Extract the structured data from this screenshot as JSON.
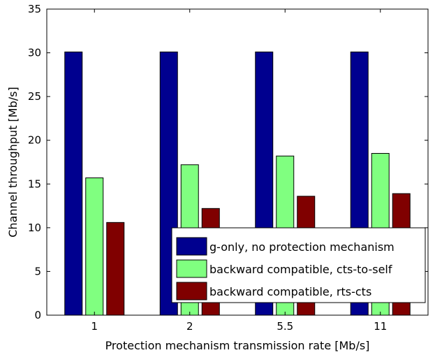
{
  "chart_data": {
    "type": "bar",
    "xlabel": "Protection mechanism transmission rate [Mb/s]",
    "ylabel": "Channel throughput [Mb/s]",
    "categories": [
      "1",
      "2",
      "5.5",
      "11"
    ],
    "ylim": [
      0,
      35
    ],
    "yticks": [
      "0",
      "5",
      "10",
      "15",
      "20",
      "25",
      "30",
      "35"
    ],
    "grid": false,
    "legend_position": "lower-right",
    "series": [
      {
        "name": "g-only, no protection mechanism",
        "color": "#00008f",
        "values": [
          30.1,
          30.1,
          30.1,
          30.1
        ]
      },
      {
        "name": "backward compatible, cts-to-self",
        "color": "#80ff80",
        "values": [
          15.7,
          17.2,
          18.2,
          18.5
        ]
      },
      {
        "name": "backward compatible, rts-cts",
        "color": "#800000",
        "values": [
          10.6,
          12.2,
          13.6,
          13.9
        ]
      }
    ]
  }
}
